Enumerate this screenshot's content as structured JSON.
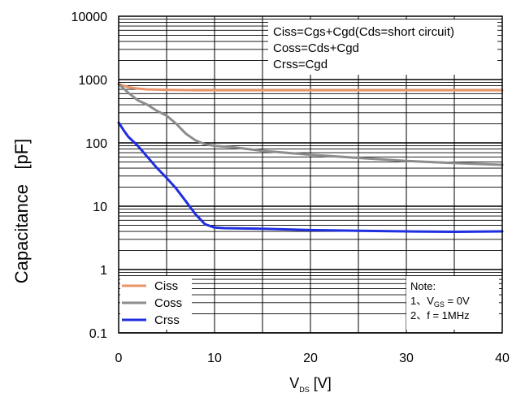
{
  "chart_data": {
    "type": "line",
    "xlabel": {
      "main": "V",
      "sub": "DS",
      "unit": " [V]"
    },
    "ylabel": "Capacitance   [pF]",
    "xlim": [
      0,
      40
    ],
    "ylim": [
      0.1,
      10000
    ],
    "yscale": "log",
    "x_ticks": [
      "0",
      "10",
      "20",
      "30",
      "40"
    ],
    "y_ticks": [
      "10000",
      "1000",
      "100",
      "10",
      "1",
      "0.1"
    ],
    "grid": true,
    "annotations": [
      "Ciss=Cgs+Cgd(Cds=short circuit)",
      "Coss=Cds+Cgd",
      "Crss=Cgd"
    ],
    "note": {
      "title": "Note:",
      "line1": {
        "prefix": "1、V",
        "sub": "GS",
        "suffix": " = 0V"
      },
      "line2": "2、f = 1MHz"
    },
    "legend_position": "bottom-left",
    "series": [
      {
        "name": "Ciss",
        "color": "#e8956a",
        "x": [
          0,
          1,
          2,
          3,
          5,
          8,
          10,
          20,
          30,
          40
        ],
        "y": [
          850,
          760,
          720,
          700,
          690,
          680,
          680,
          680,
          680,
          680
        ]
      },
      {
        "name": "Coss",
        "color": "#8c8c8c",
        "x": [
          0,
          1,
          2,
          3,
          4,
          5,
          6,
          7,
          8,
          9,
          10,
          12,
          15,
          20,
          25,
          30,
          35,
          40
        ],
        "y": [
          850,
          620,
          470,
          400,
          320,
          270,
          200,
          140,
          110,
          95,
          90,
          85,
          75,
          65,
          58,
          52,
          48,
          45
        ]
      },
      {
        "name": "Crss",
        "color": "#1f2fe0",
        "x": [
          0,
          0.5,
          1,
          2,
          3,
          4,
          5,
          6,
          7,
          8,
          9,
          10,
          11,
          15,
          20,
          25,
          30,
          35,
          40
        ],
        "y": [
          210,
          160,
          125,
          90,
          60,
          40,
          28,
          19,
          12,
          7.5,
          5.2,
          4.6,
          4.5,
          4.4,
          4.2,
          4.1,
          4.0,
          3.95,
          4.0
        ]
      }
    ]
  }
}
